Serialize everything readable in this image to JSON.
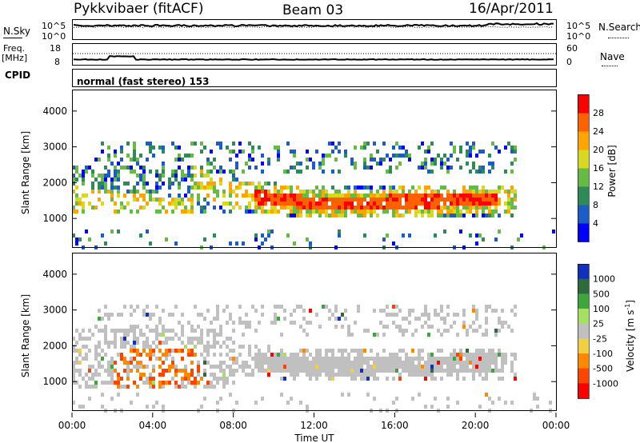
{
  "header": {
    "station": "Pykkvibaer (fitACF)",
    "beam": "Beam 03",
    "date": "16/Apr/2011"
  },
  "nsky_panel": {
    "left_label": "N.Sky",
    "left_ticks": [
      "10^5",
      "10^0"
    ],
    "right_label": "N.Search",
    "right_ticks": [
      "10^5",
      "10^0"
    ]
  },
  "freq_panel": {
    "left_label_line1": "Freq.",
    "left_label_line2": "[MHz]",
    "left_ticks": [
      "18",
      "8"
    ],
    "right_label": "Nave",
    "right_ticks": [
      "60",
      "0"
    ]
  },
  "cpid": {
    "label": "CPID",
    "value": "normal (fast stereo) 153"
  },
  "chart_data": [
    {
      "type": "heatmap",
      "name": "power",
      "ylabel": "Slant Range [km]",
      "ylim": [
        200,
        4600
      ],
      "yticks": [
        "1000",
        "2000",
        "3000",
        "4000"
      ],
      "colorbar_label": "Power [dB]",
      "colorbar_ticks": [
        "4",
        "8",
        "12",
        "16",
        "20",
        "24",
        "28"
      ],
      "colorbar_colors": [
        "#0000ff",
        "#1c5cc8",
        "#2e8b57",
        "#66bb44",
        "#d8d820",
        "#ffa500",
        "#ff6000",
        "#ff0000"
      ]
    },
    {
      "type": "heatmap",
      "name": "velocity",
      "ylabel": "Slant Range [km]",
      "ylim": [
        200,
        4600
      ],
      "yticks": [
        "1000",
        "2000",
        "3000",
        "4000"
      ],
      "colorbar_label": "Velocity [m s",
      "colorbar_label_sup": "-1",
      "colorbar_ticks": [
        "1000",
        "500",
        "100",
        "25",
        "-25",
        "-100",
        "-500",
        "-1000"
      ],
      "colorbar_colors": [
        "#1030c0",
        "#2f6a3a",
        "#3ea63a",
        "#a6e060",
        "#c0c0c0",
        "#f0d040",
        "#ff8800",
        "#ff4400",
        "#ff0000"
      ]
    }
  ],
  "x_axis": {
    "label": "Time UT",
    "ticks": [
      "00:00",
      "04:00",
      "08:00",
      "12:00",
      "16:00",
      "20:00",
      "00:00"
    ]
  }
}
